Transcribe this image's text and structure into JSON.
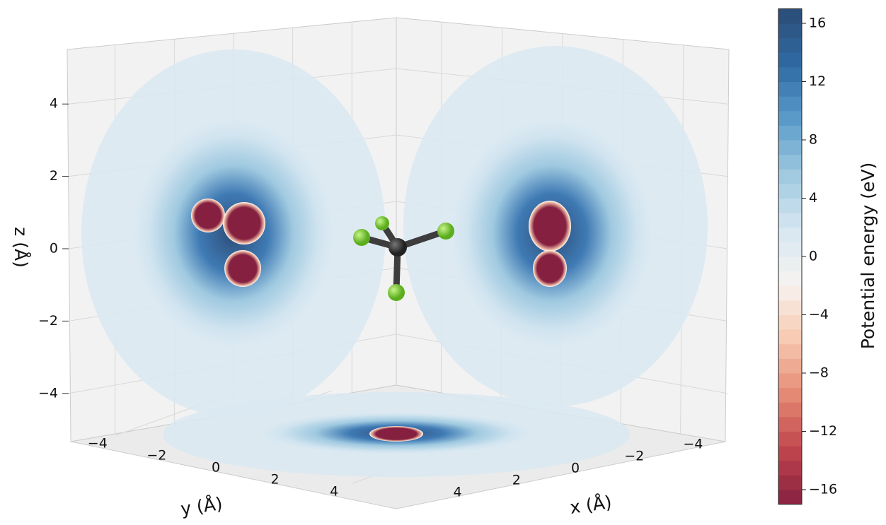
{
  "chart_data": {
    "type": "contour3d",
    "xlabel": "x (Å)",
    "ylabel": "y (Å)",
    "zlabel": "z (Å)",
    "xlim": [
      -5.5,
      5.5
    ],
    "ylim": [
      -5.5,
      5.5
    ],
    "zlim": [
      -5.5,
      5.5
    ],
    "xticks": [
      {
        "value": -4,
        "label": "−4"
      },
      {
        "value": -2,
        "label": "−2"
      },
      0,
      2,
      4
    ],
    "yticks": [
      {
        "value": -4,
        "label": "−4"
      },
      {
        "value": -2,
        "label": "−2"
      },
      0,
      2,
      4
    ],
    "zticks": [
      {
        "value": -4,
        "label": "−4"
      },
      {
        "value": -2,
        "label": "−2"
      },
      0,
      2,
      4
    ],
    "colorbar": {
      "label": "Potential energy (eV)",
      "clim": [
        -17,
        17
      ],
      "ticks": [
        {
          "value": -16,
          "label": "−16"
        },
        {
          "value": -12,
          "label": "−12"
        },
        {
          "value": -8,
          "label": "−8"
        },
        {
          "value": -4,
          "label": "−4"
        },
        0,
        4,
        8,
        12,
        16
      ]
    },
    "colormap": [
      "#862040",
      "#c0454d",
      "#e58a74",
      "#f7c9b1",
      "#f7f3f0",
      "#d6e7f1",
      "#9fc9e0",
      "#5a9bc9",
      "#2f6aa4",
      "#2c4c76"
    ],
    "grid": true
  }
}
